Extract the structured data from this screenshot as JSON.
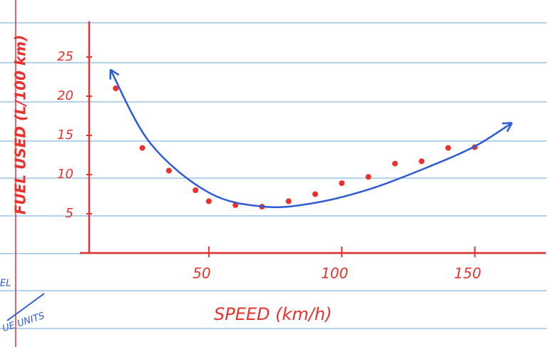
{
  "chart_data": {
    "type": "scatter",
    "xlabel": "SPEED (km/h)",
    "ylabel": "FUEL USED (L/100 km)",
    "annotations": [
      "EL",
      "UE UNITS"
    ],
    "xlim": [
      5,
      175
    ],
    "ylim": [
      0,
      29
    ],
    "xticks": [
      50,
      100,
      150
    ],
    "yticks": [
      5,
      10,
      15,
      20,
      25
    ],
    "series": [
      {
        "color": "#e8322e",
        "x": [
          15,
          25,
          35,
          45,
          50,
          60,
          70,
          80,
          90,
          100,
          110,
          120,
          130,
          140,
          150
        ],
        "values": [
          21,
          13.4,
          10.5,
          8,
          6.6,
          6.1,
          5.9,
          6.6,
          7.5,
          8.9,
          9.7,
          11.4,
          11.7,
          13.4,
          13.5
        ]
      },
      {
        "color": "#2d5bd6",
        "x": [
          13,
          28,
          50,
          71,
          90,
          111,
          132,
          150,
          164
        ],
        "values": [
          23.4,
          14,
          7.7,
          5.9,
          6.4,
          8.2,
          10.9,
          13.6,
          16.6
        ]
      }
    ]
  }
}
